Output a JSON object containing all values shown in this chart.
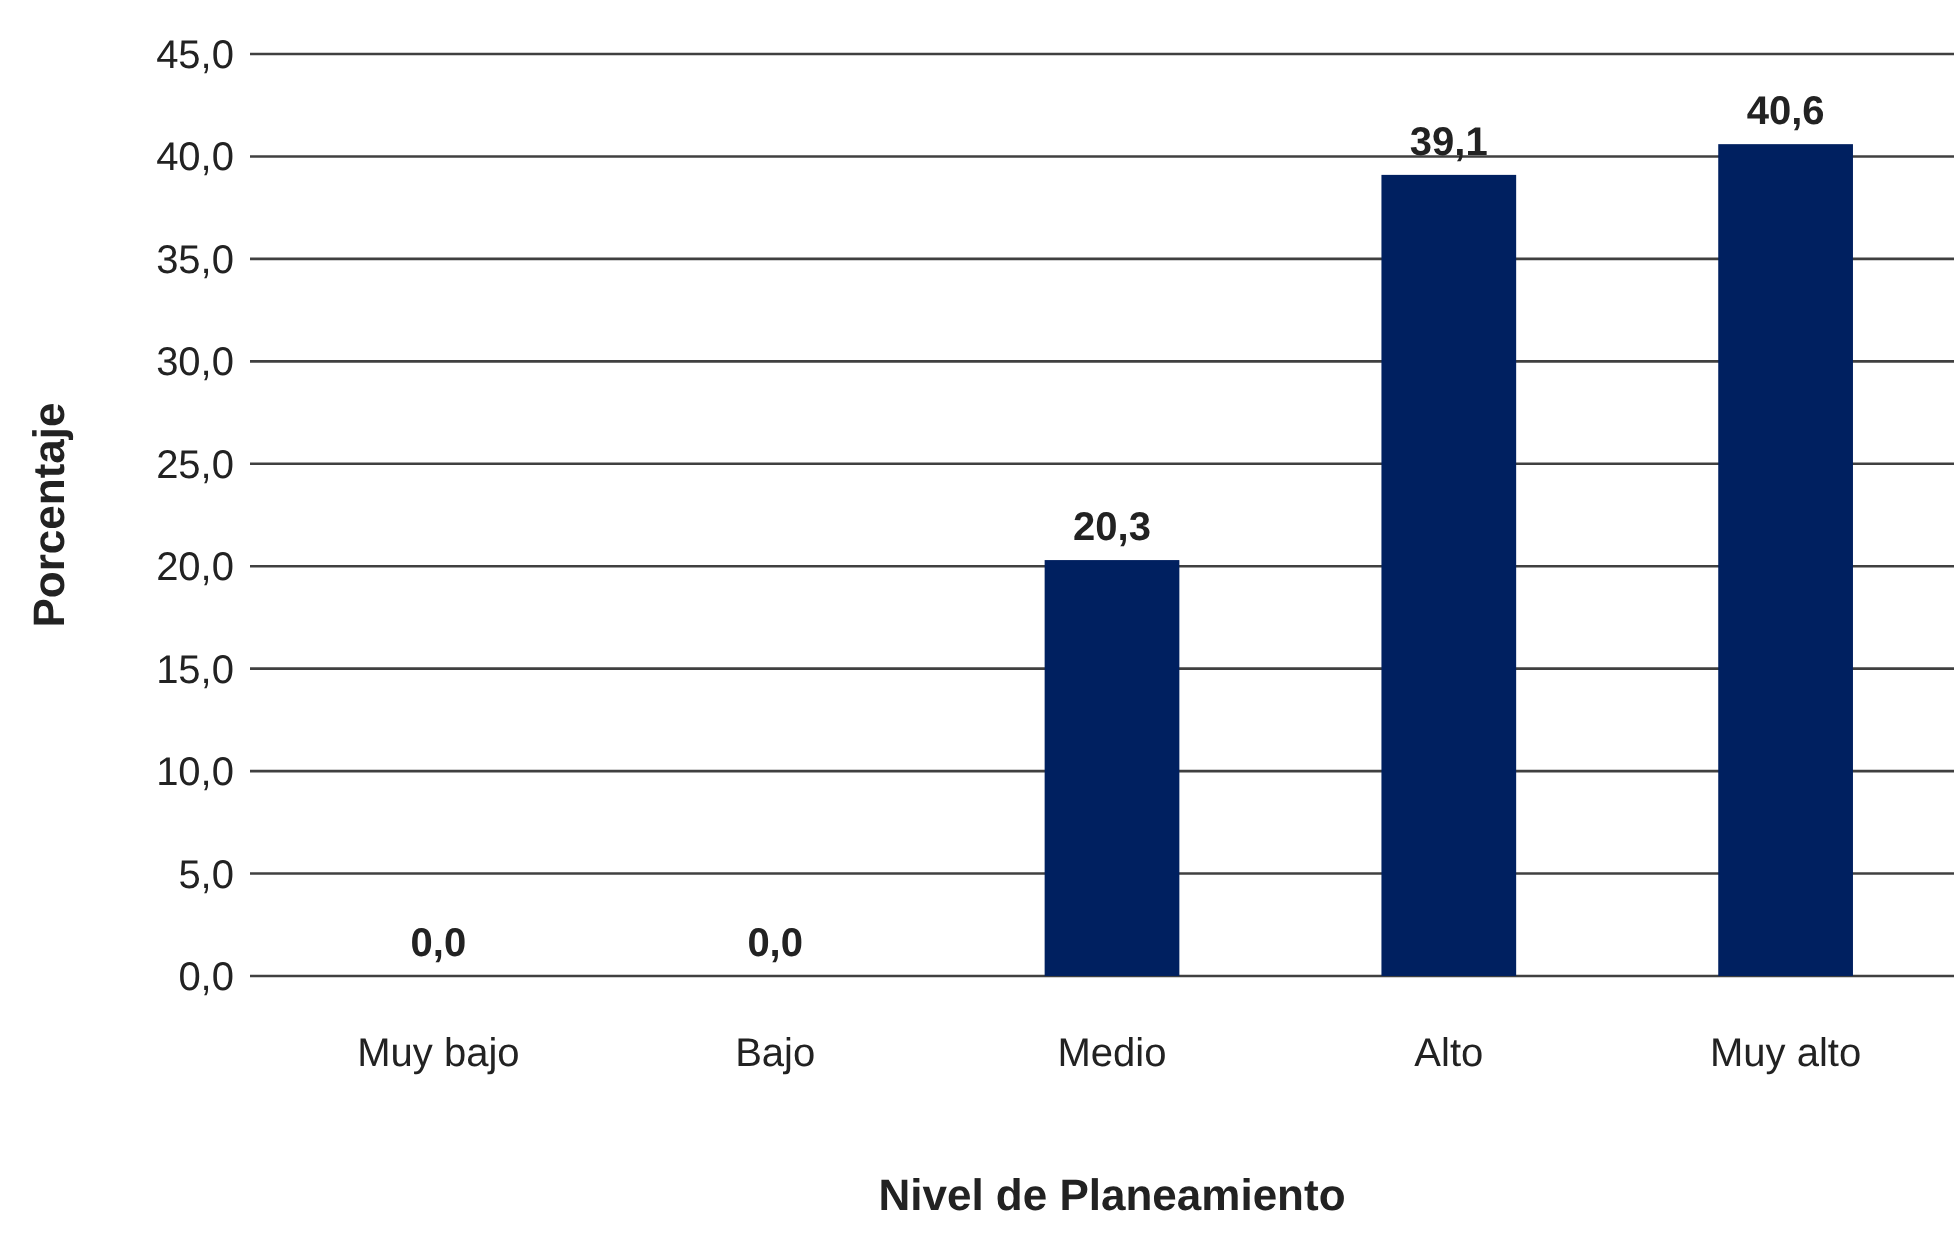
{
  "chart_data": {
    "type": "bar",
    "xlabel": "Nivel de Planeamiento",
    "ylabel": "Porcentaje",
    "categories": [
      "Muy bajo",
      "Bajo",
      "Medio",
      "Alto",
      "Muy alto"
    ],
    "values": [
      0.0,
      0.0,
      20.3,
      39.1,
      40.6
    ],
    "value_labels": [
      "0,0",
      "0,0",
      "20,3",
      "39,1",
      "40,6"
    ],
    "color": "#002060",
    "ylim": [
      0,
      45
    ],
    "yticks": [
      {
        "value": 0,
        "label": "0,0"
      },
      {
        "value": 5,
        "label": "5,0"
      },
      {
        "value": 10,
        "label": "10,0"
      },
      {
        "value": 15,
        "label": "15,0"
      },
      {
        "value": 20,
        "label": "20,0"
      },
      {
        "value": 25,
        "label": "25,0"
      },
      {
        "value": 30,
        "label": "30,0"
      },
      {
        "value": 35,
        "label": "35,0"
      },
      {
        "value": 40,
        "label": "40,0"
      },
      {
        "value": 45,
        "label": "45,0"
      }
    ],
    "grid": "y"
  }
}
